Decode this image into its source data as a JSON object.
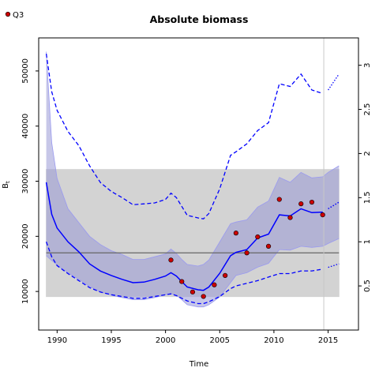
{
  "chart_data": {
    "type": "line",
    "title": "Absolute biomass",
    "xlabel": "Time",
    "ylabel": "B_t",
    "xlim": [
      1988.3,
      2017.8
    ],
    "ylim": [
      3000,
      56000
    ],
    "y2lim": [
      0.0,
      3.31
    ],
    "x_ticks": [
      1990,
      1995,
      2000,
      2005,
      2010,
      2015
    ],
    "y_ticks": [
      10000,
      20000,
      30000,
      40000,
      50000
    ],
    "y2_ticks": [
      0.5,
      1,
      1.5,
      2,
      2.5,
      3
    ],
    "legend": {
      "position": "top-left",
      "entries": [
        {
          "label": "Q3",
          "color": "#cc0000",
          "marker": "circle"
        }
      ]
    },
    "reference_band": {
      "low": 9000,
      "high": 32200,
      "color": "#d3d3d3"
    },
    "reference_line": 17000,
    "vertical_line_x": 2014.6,
    "projection_start": 2014.6,
    "colors": {
      "estimate": "#0000ff",
      "ci_fill": "#9999d6",
      "points_fill": "#cc0000",
      "ref_line": "#666666"
    },
    "series": [
      {
        "name": "B_t estimate",
        "x": [
          1989,
          1989.5,
          1990,
          1991,
          1992,
          1993,
          1994,
          1995,
          1996,
          1997,
          1998,
          1999,
          2000,
          2000.5,
          2001,
          2001.5,
          2002,
          2003,
          2003.5,
          2004,
          2005,
          2006,
          2006.5,
          2007.5,
          2008.5,
          2009.5,
          2010.5,
          2011.5,
          2012.5,
          2013.5,
          2014.5,
          2015,
          2016
        ],
        "values": [
          29800,
          24000,
          21500,
          19000,
          17200,
          15000,
          13700,
          12900,
          12200,
          11600,
          11700,
          12200,
          12800,
          13400,
          12800,
          11800,
          10800,
          10300,
          10200,
          10800,
          13300,
          16500,
          17100,
          17600,
          19700,
          20400,
          23900,
          23700,
          25000,
          24300,
          24400,
          25000,
          26200
        ]
      },
      {
        "name": "B_t lower 95%",
        "x": [
          1989,
          1989.5,
          1990,
          1991,
          1992,
          1993,
          1994,
          1995,
          1996,
          1997,
          1998,
          1999,
          2000,
          2000.5,
          2001,
          2001.5,
          2002,
          2003,
          2003.5,
          2004,
          2005,
          2006,
          2006.5,
          2007.5,
          2008.5,
          2009.5,
          2010.5,
          2011.5,
          2012.5,
          2013.5,
          2014.5,
          2015,
          2016
        ],
        "values": [
          16500,
          15600,
          14800,
          13400,
          12200,
          10900,
          9900,
          9300,
          8900,
          8500,
          8500,
          8900,
          9400,
          9600,
          9300,
          8500,
          7600,
          7200,
          7200,
          7600,
          9000,
          11600,
          12900,
          13400,
          14400,
          15100,
          17600,
          17500,
          18200,
          18000,
          18200,
          18700,
          19600
        ]
      },
      {
        "name": "B_t upper 95%",
        "x": [
          1989,
          1989.5,
          1990,
          1991,
          1992,
          1993,
          1994,
          1995,
          1996,
          1997,
          1998,
          1999,
          2000,
          2000.5,
          2001,
          2001.5,
          2002,
          2003,
          2003.5,
          2004,
          2005,
          2006,
          2006.5,
          2007.5,
          2008.5,
          2009.5,
          2010.5,
          2011.5,
          2012.5,
          2013.5,
          2014.5,
          2015,
          2016
        ],
        "values": [
          53500,
          37000,
          30500,
          25000,
          22500,
          20000,
          18500,
          17400,
          16700,
          15800,
          15800,
          16300,
          16800,
          17700,
          16900,
          15800,
          14900,
          14600,
          14900,
          15700,
          19000,
          22300,
          22600,
          23000,
          25300,
          26400,
          30700,
          29800,
          31600,
          30600,
          30800,
          31600,
          32800
        ]
      },
      {
        "name": "B/B_MSY",
        "x": [
          1989,
          1989.5,
          1990,
          1991,
          1992,
          1993,
          1994,
          1995,
          1996,
          1997,
          1998,
          1999,
          2000,
          2000.5,
          2001,
          2002,
          2003,
          2003.5,
          2004,
          2005,
          2006,
          2006.5,
          2007.5,
          2008.5,
          2009.5,
          2010.5,
          2011.5,
          2012.5,
          2013.5,
          2014.5,
          2015,
          2016
        ],
        "values": [
          3.13,
          2.7,
          2.49,
          2.25,
          2.09,
          1.86,
          1.67,
          1.57,
          1.5,
          1.42,
          1.43,
          1.44,
          1.48,
          1.55,
          1.5,
          1.3,
          1.27,
          1.26,
          1.32,
          1.6,
          1.98,
          2.02,
          2.11,
          2.26,
          2.35,
          2.79,
          2.76,
          2.9,
          2.72,
          2.68,
          2.72,
          2.9
        ]
      },
      {
        "name": "B/B_MSY lower",
        "x": [
          1989,
          1989.5,
          1990,
          1991,
          1992,
          1993,
          1994,
          1995,
          1996,
          1997,
          1998,
          1999,
          2000,
          2000.5,
          2001,
          2002,
          2003,
          2003.5,
          2004,
          2005,
          2006,
          2006.5,
          2007.5,
          2008.5,
          2009.5,
          2010.5,
          2011.5,
          2012.5,
          2013.5,
          2014.5,
          2015,
          2016
        ],
        "values": [
          1.0,
          0.83,
          0.73,
          0.64,
          0.56,
          0.48,
          0.43,
          0.4,
          0.38,
          0.36,
          0.36,
          0.38,
          0.4,
          0.41,
          0.39,
          0.33,
          0.3,
          0.3,
          0.32,
          0.38,
          0.47,
          0.5,
          0.53,
          0.56,
          0.6,
          0.64,
          0.64,
          0.67,
          0.67,
          0.69,
          0.71,
          0.75
        ]
      },
      {
        "name": "Q3",
        "x": [
          2000.5,
          2001.5,
          2002.5,
          2003.5,
          2004.5,
          2005.5,
          2006.5,
          2007.5,
          2008.5,
          2009.5,
          2010.5,
          2011.5,
          2012.5,
          2013.5,
          2014.5
        ],
        "values": [
          15700,
          11800,
          9900,
          9100,
          11200,
          12900,
          20600,
          17000,
          19900,
          18200,
          26700,
          23400,
          25900,
          26200,
          23900
        ]
      }
    ]
  }
}
